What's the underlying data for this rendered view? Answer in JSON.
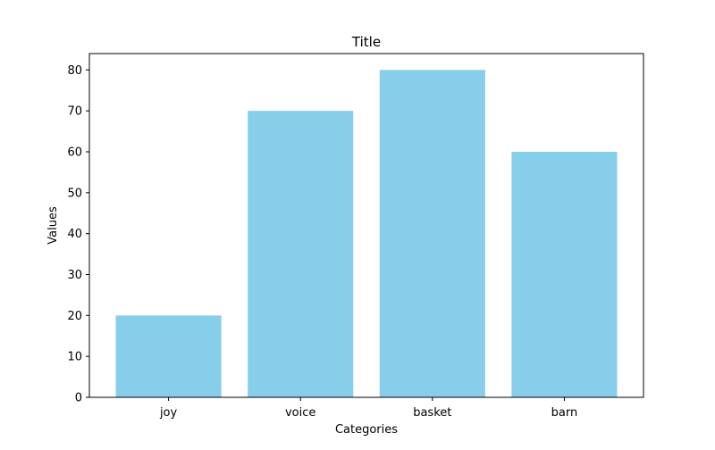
{
  "chart_data": {
    "type": "bar",
    "title": "Title",
    "xlabel": "Categories",
    "ylabel": "Values",
    "categories": [
      "joy",
      "voice",
      "basket",
      "barn"
    ],
    "values": [
      20,
      70,
      80,
      60
    ],
    "ylim": [
      0,
      84
    ],
    "yticks": [
      0,
      10,
      20,
      30,
      40,
      50,
      60,
      70,
      80
    ],
    "bar_color": "#87ceeb",
    "grid": false,
    "legend": "none"
  }
}
